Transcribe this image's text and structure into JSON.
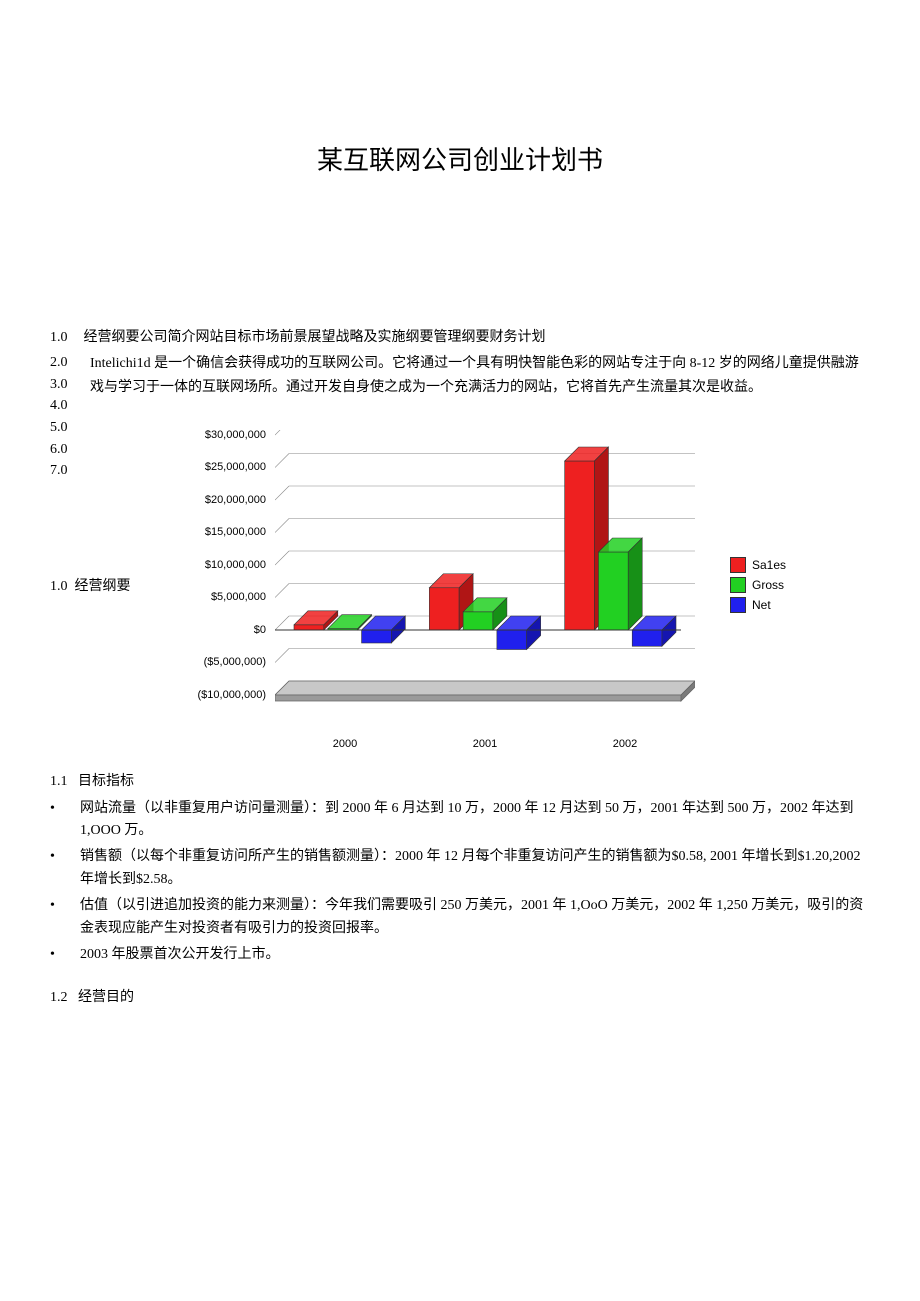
{
  "title": "某互联网公司创业计划书",
  "toc": {
    "line1_num": "1.0",
    "line1_text": "经营纲要公司简介网站目标市场前景展望战略及实施纲要管理纲要财务计划",
    "nums": [
      "2.0",
      "3.0",
      "4.0",
      "5.0",
      "6.0",
      "7.0"
    ],
    "intro_para": "Intelichi1d 是一个确信会获得成功的互联网公司。它将通过一个具有明快智能色彩的网站专注于向 8-12 岁的网络儿童提供融游戏与学习于一体的互联网场所。通过开发自身使之成为一个充满活力的网站，它将首先产生流量其次是收益。"
  },
  "section1": {
    "num": "1.0",
    "label": "经营纲要"
  },
  "section11": {
    "num": "1.1",
    "label": "目标指标",
    "bullets": [
      "网站流量（以非重复用户访问量测量）：到 2000 年 6 月达到 10 万，2000 年 12 月达到 50 万，2001 年达到 500 万，2002 年达到 1,OOO 万。",
      "销售额（以每个非重复访问所产生的销售额测量）：2000 年 12 月每个非重复访问产生的销售额为$0.58, 2001 年增长到$1.20,2002 年增长到$2.58。",
      "估值（以引进追加投资的能力来测量）：今年我们需要吸引 250 万美元，2001 年 1,OoO 万美元，2002 年 1,250 万美元，吸引的资金表现应能产生对投资者有吸引力的投资回报率。",
      "2003 年股票首次公开发行上市。"
    ]
  },
  "section12": {
    "num": "1.2",
    "label": "经营目的"
  },
  "chart": {
    "type": "bar-3d",
    "categories": [
      "2000",
      "2001",
      "2002"
    ],
    "series": [
      {
        "name": "Sa1es",
        "color": "#ee2020",
        "side": "#b01515",
        "values_m": [
          0.8,
          6.5,
          26.0
        ]
      },
      {
        "name": "Gross",
        "color": "#22d022",
        "side": "#179017",
        "values_m": [
          0.2,
          2.8,
          12.0
        ]
      },
      {
        "name": "Net",
        "color": "#2020ee",
        "side": "#1515b0",
        "values_m": [
          -2.0,
          -3.0,
          -2.5
        ]
      }
    ],
    "y_ticks": [
      {
        "v": 30000000,
        "label": "$30,000,000"
      },
      {
        "v": 25000000,
        "label": "$25,000,000"
      },
      {
        "v": 20000000,
        "label": "$20,000,000"
      },
      {
        "v": 15000000,
        "label": "$15,000,000"
      },
      {
        "v": 10000000,
        "label": "$10,000,000"
      },
      {
        "v": 5000000,
        "label": "$5,000,000"
      },
      {
        "v": 0,
        "label": "$0"
      },
      {
        "v": -5000000,
        "label": "($5,000,000)"
      },
      {
        "v": -10000000,
        "label": "($10,000,000)"
      }
    ],
    "ylim": [
      -10000000,
      30000000
    ],
    "floor_color": "#9a9a9a",
    "floor_top": "#c8c8c8",
    "grid_color": "#888888",
    "background": "#ffffff",
    "label_fontsize": 11,
    "bar_width": 0.22,
    "depth": 14
  }
}
